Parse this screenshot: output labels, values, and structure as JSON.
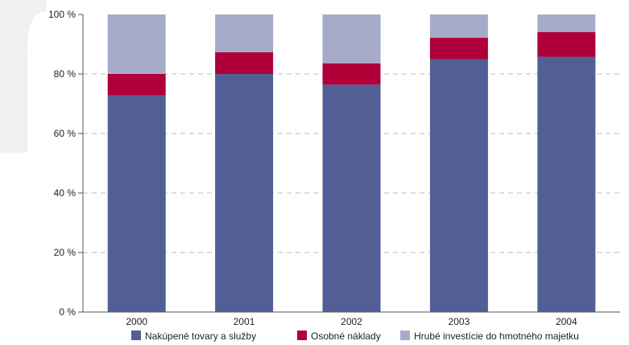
{
  "chart_data": {
    "type": "bar",
    "stacked": true,
    "categories": [
      "2000",
      "2001",
      "2002",
      "2003",
      "2004"
    ],
    "series": [
      {
        "name": "Nakúpené tovary a služby",
        "color": "#525f94",
        "values": [
          72.8,
          80.0,
          76.4,
          85.0,
          85.8
        ]
      },
      {
        "name": "Osobné náklady",
        "color": "#b0003a",
        "values": [
          7.2,
          7.3,
          7.2,
          7.2,
          8.3
        ]
      },
      {
        "name": "Hrubé investície do hmotného majetku",
        "color": "#a7abca",
        "values": [
          20.0,
          12.7,
          16.4,
          7.8,
          5.9
        ]
      }
    ],
    "yticks": [
      "0 %",
      "20 %",
      "40 %",
      "60 %",
      "80 %",
      "100 %"
    ],
    "ylim": [
      0,
      100
    ],
    "grid": true,
    "legend_position": "bottom"
  }
}
